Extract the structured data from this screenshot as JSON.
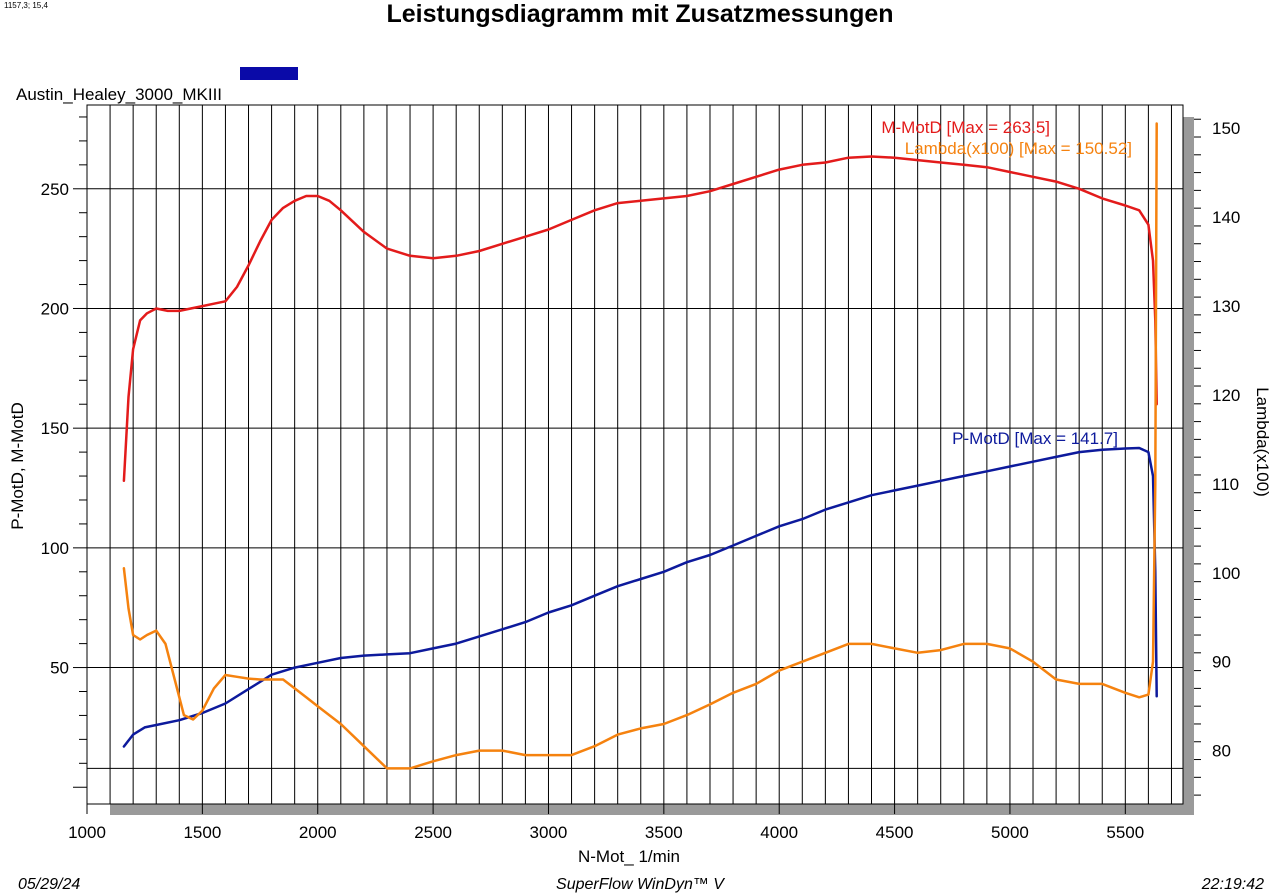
{
  "header": {
    "coords": "1157,3; 15,4",
    "title": "Leistungsdiagramm mit Zusatzmessungen",
    "vehicle": "Austin_Healey_3000_MKIII"
  },
  "footer": {
    "date": "05/29/24",
    "app": "SuperFlow WinDyn™ V",
    "time": "22:19:42"
  },
  "colors": {
    "torque": "#e31b1b",
    "power": "#0d1a9c",
    "lambda": "#f5820f",
    "swatch": "#0a0aa8",
    "grid": "#000000",
    "shadow": "#9a9a9a"
  },
  "chart_data": {
    "type": "line",
    "xlabel": "N-Mot_ 1/min",
    "ylabel": "P-MotD, M-MotD",
    "y2label": "Lambda(x100)",
    "xlim": [
      1000,
      5750
    ],
    "ylim": [
      -7,
      285
    ],
    "y2lim": [
      74,
      152.6
    ],
    "xticks": [
      1000,
      1500,
      2000,
      2500,
      3000,
      3500,
      4000,
      4500,
      5000,
      5500
    ],
    "yticks": [
      50,
      100,
      150,
      200,
      250
    ],
    "y2ticks": [
      80,
      90,
      100,
      110,
      120,
      130,
      140,
      150
    ],
    "series": [
      {
        "name": "M-MotD",
        "legend": "M-MotD [Max = 263.5]",
        "axis": "left",
        "color_key": "torque",
        "x": [
          1160,
          1180,
          1200,
          1230,
          1260,
          1300,
          1350,
          1400,
          1450,
          1500,
          1550,
          1600,
          1650,
          1700,
          1750,
          1800,
          1850,
          1900,
          1950,
          2000,
          2050,
          2100,
          2200,
          2300,
          2400,
          2500,
          2600,
          2700,
          2800,
          2900,
          3000,
          3100,
          3200,
          3300,
          3400,
          3500,
          3600,
          3700,
          3800,
          3900,
          4000,
          4100,
          4200,
          4300,
          4400,
          4500,
          4600,
          4700,
          4800,
          4900,
          5000,
          5100,
          5200,
          5300,
          5400,
          5500,
          5560,
          5600,
          5620,
          5630,
          5636
        ],
        "y": [
          128,
          163,
          183,
          195,
          198,
          200,
          199,
          199,
          200,
          201,
          202,
          203,
          209,
          218,
          228,
          237,
          242,
          245,
          247,
          247,
          245,
          241,
          232,
          225,
          222,
          221,
          222,
          224,
          227,
          230,
          233,
          237,
          241,
          244,
          245,
          246,
          247,
          249,
          252,
          255,
          258,
          260,
          261,
          263,
          263.5,
          263,
          262,
          261,
          260,
          259,
          257,
          255,
          253,
          250,
          246,
          243,
          241,
          235,
          220,
          195,
          160
        ]
      },
      {
        "name": "P-MotD",
        "legend": "P-MotD [Max = 141.7]",
        "axis": "left",
        "color_key": "power",
        "x": [
          1160,
          1200,
          1250,
          1300,
          1400,
          1500,
          1600,
          1700,
          1800,
          1900,
          2000,
          2100,
          2200,
          2300,
          2400,
          2500,
          2600,
          2700,
          2800,
          2900,
          3000,
          3100,
          3200,
          3300,
          3400,
          3500,
          3600,
          3700,
          3800,
          3900,
          4000,
          4100,
          4200,
          4300,
          4400,
          4500,
          4600,
          4700,
          4800,
          4900,
          5000,
          5100,
          5200,
          5300,
          5400,
          5500,
          5560,
          5600,
          5620,
          5630,
          5636
        ],
        "y": [
          17,
          22,
          25,
          26,
          28,
          31,
          35,
          41,
          47,
          50,
          52,
          54,
          55,
          55.5,
          56,
          58,
          60,
          63,
          66,
          69,
          73,
          76,
          80,
          84,
          87,
          90,
          94,
          97,
          101,
          105,
          109,
          112,
          116,
          119,
          122,
          124,
          126,
          128,
          130,
          132,
          134,
          136,
          138,
          140,
          141,
          141.5,
          141.7,
          140,
          130,
          90,
          38
        ]
      },
      {
        "name": "Lambda(x100)",
        "legend": "Lambda(x100) [Max = 150.52]",
        "axis": "right",
        "color_key": "lambda",
        "x": [
          1160,
          1180,
          1200,
          1230,
          1260,
          1300,
          1340,
          1380,
          1420,
          1460,
          1500,
          1550,
          1600,
          1650,
          1700,
          1750,
          1800,
          1850,
          1900,
          1950,
          2000,
          2100,
          2200,
          2300,
          2400,
          2500,
          2600,
          2700,
          2800,
          2900,
          3000,
          3100,
          3200,
          3300,
          3400,
          3500,
          3600,
          3700,
          3800,
          3900,
          4000,
          4100,
          4200,
          4300,
          4400,
          4500,
          4600,
          4700,
          4800,
          4900,
          5000,
          5100,
          5200,
          5300,
          5400,
          5500,
          5560,
          5600,
          5620,
          5630,
          5636
        ],
        "y": [
          100.5,
          96,
          93,
          92.5,
          93,
          93.5,
          92,
          88,
          84,
          83.5,
          84.5,
          87,
          88.5,
          88.3,
          88.1,
          88,
          88,
          88,
          87,
          86,
          85,
          83,
          80.5,
          78,
          78,
          78.8,
          79.5,
          80,
          80,
          79.5,
          79.5,
          79.5,
          80.5,
          81.8,
          82.5,
          83,
          84,
          85.2,
          86.5,
          87.5,
          89,
          90,
          91,
          92,
          92,
          91.5,
          91,
          91.3,
          92,
          92,
          91.5,
          90,
          88,
          87.5,
          87.5,
          86.5,
          86,
          86.3,
          90,
          110,
          150.52
        ]
      }
    ]
  }
}
